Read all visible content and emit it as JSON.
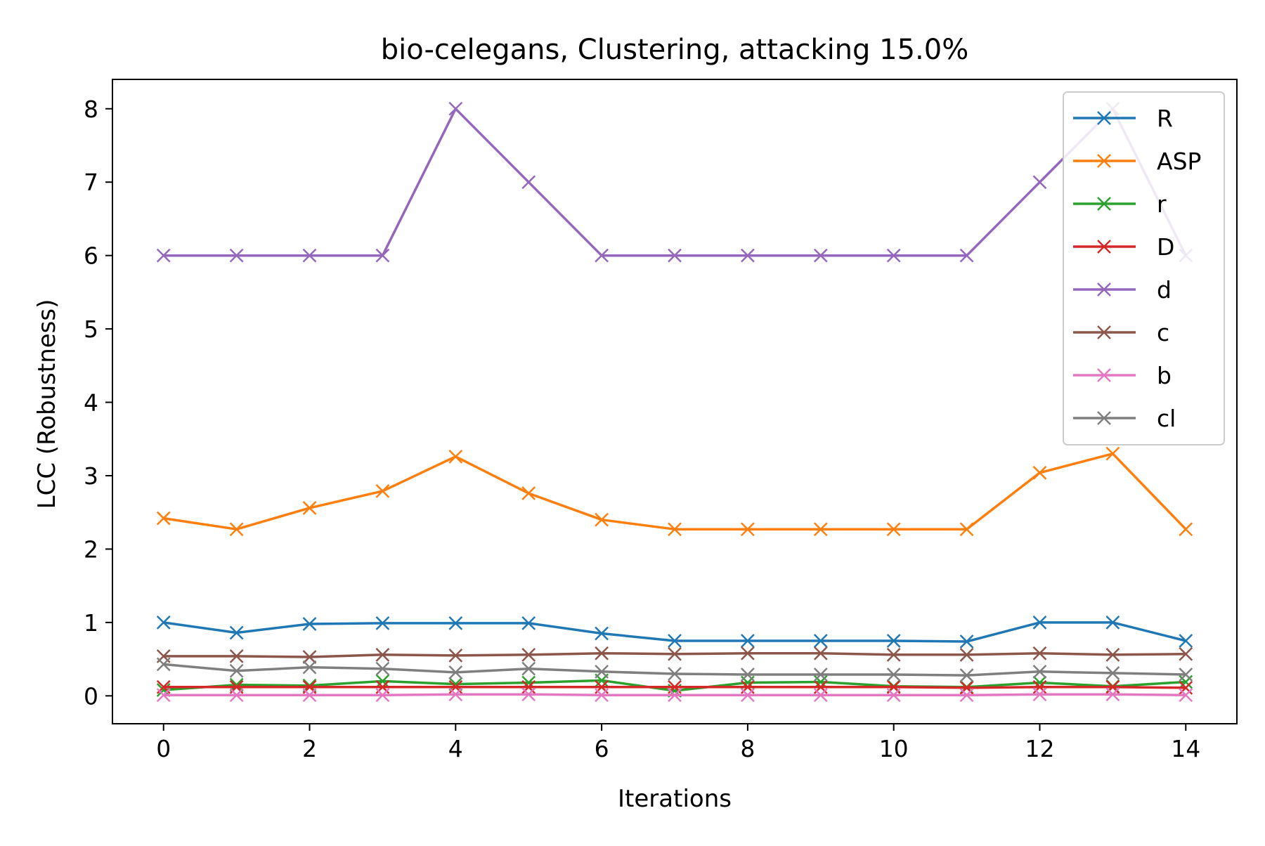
{
  "chart_data": {
    "type": "line",
    "title": "bio-celegans, Clustering, attacking 15.0%",
    "xlabel": "Iterations",
    "ylabel": "LCC (Robustness)",
    "xlim": [
      -0.7,
      14.7
    ],
    "ylim": [
      -0.38,
      8.4
    ],
    "x": [
      0,
      1,
      2,
      3,
      4,
      5,
      6,
      7,
      8,
      9,
      10,
      11,
      12,
      13,
      14
    ],
    "xticks": [
      0,
      2,
      4,
      6,
      8,
      10,
      12,
      14
    ],
    "yticks": [
      0,
      1,
      2,
      3,
      4,
      5,
      6,
      7,
      8
    ],
    "grid": false,
    "legend_position": "top-right",
    "marker": "x",
    "series": [
      {
        "name": "R",
        "color": "#1f77b4",
        "values": [
          1.0,
          0.86,
          0.98,
          0.99,
          0.99,
          0.99,
          0.85,
          0.75,
          0.75,
          0.75,
          0.75,
          0.74,
          1.0,
          1.0,
          0.75
        ]
      },
      {
        "name": "ASP",
        "color": "#ff7f0e",
        "values": [
          2.42,
          2.27,
          2.56,
          2.79,
          3.26,
          2.76,
          2.4,
          2.27,
          2.27,
          2.27,
          2.27,
          2.27,
          3.04,
          3.3,
          2.27
        ]
      },
      {
        "name": "r",
        "color": "#2ca02c",
        "values": [
          0.08,
          0.15,
          0.14,
          0.2,
          0.16,
          0.18,
          0.21,
          0.07,
          0.18,
          0.19,
          0.13,
          0.12,
          0.18,
          0.13,
          0.19
        ]
      },
      {
        "name": "D",
        "color": "#d62728",
        "values": [
          0.12,
          0.12,
          0.12,
          0.12,
          0.12,
          0.12,
          0.12,
          0.12,
          0.12,
          0.12,
          0.12,
          0.11,
          0.12,
          0.12,
          0.11
        ]
      },
      {
        "name": "d",
        "color": "#9467bd",
        "values": [
          6,
          6,
          6,
          6,
          8,
          7,
          6,
          6,
          6,
          6,
          6,
          6,
          7,
          8,
          6
        ]
      },
      {
        "name": "c",
        "color": "#8c564b",
        "values": [
          0.54,
          0.54,
          0.53,
          0.56,
          0.55,
          0.56,
          0.58,
          0.57,
          0.58,
          0.58,
          0.56,
          0.56,
          0.58,
          0.56,
          0.57
        ]
      },
      {
        "name": "b",
        "color": "#e377c2",
        "values": [
          0.01,
          0.01,
          0.01,
          0.01,
          0.02,
          0.02,
          0.01,
          0.01,
          0.01,
          0.01,
          0.01,
          0.01,
          0.02,
          0.02,
          0.01
        ]
      },
      {
        "name": "cl",
        "color": "#7f7f7f",
        "values": [
          0.43,
          0.34,
          0.39,
          0.37,
          0.32,
          0.37,
          0.33,
          0.3,
          0.29,
          0.29,
          0.29,
          0.28,
          0.33,
          0.31,
          0.29
        ]
      }
    ]
  }
}
